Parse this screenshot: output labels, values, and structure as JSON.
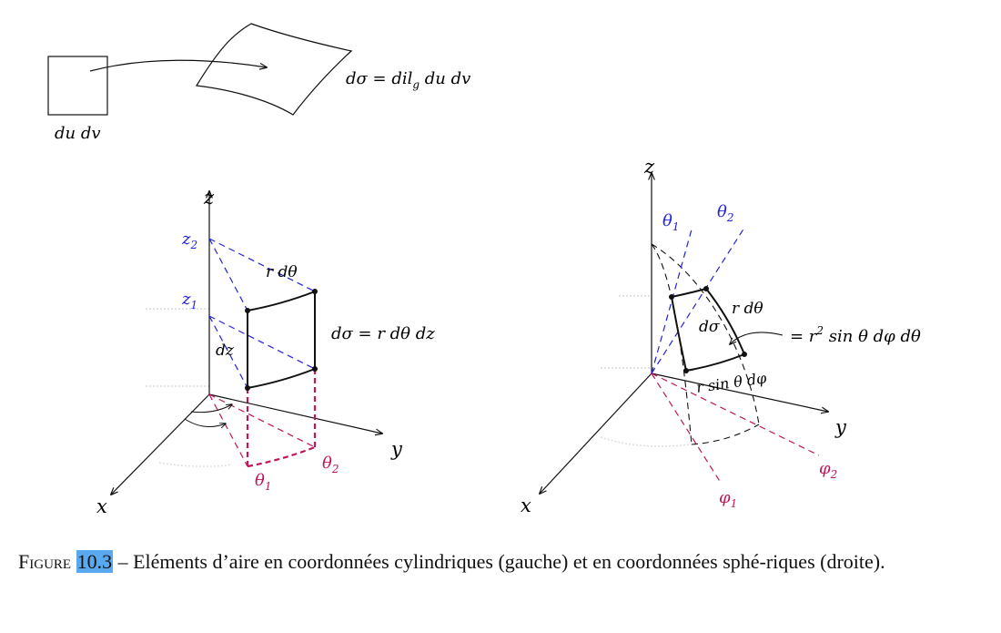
{
  "top": {
    "square_label": "du dv",
    "formula": "dσ = dil",
    "formula_sub": "g",
    "formula_rest": " du dv"
  },
  "cylinder": {
    "axis_z": "z",
    "axis_x": "x",
    "axis_y": "y",
    "z2": "z",
    "z2_sub": "2",
    "z1": "z",
    "z1_sub": "1",
    "theta1": "θ",
    "theta1_sub": "1",
    "theta2": "θ",
    "theta2_sub": "2",
    "r_dtheta": "r dθ",
    "dz": "dz",
    "formula": "dσ = r dθ dz"
  },
  "sphere": {
    "axis_z": "z",
    "axis_x": "x",
    "axis_y": "y",
    "theta1": "θ",
    "theta1_sub": "1",
    "theta2": "θ",
    "theta2_sub": "2",
    "phi1": "φ",
    "phi1_sub": "1",
    "phi2": "φ",
    "phi2_sub": "2",
    "r_dtheta": "r dθ",
    "dsigma": "dσ",
    "formula_a": "= r",
    "formula_sup": "2",
    "formula_b": " sin θ dφ dθ",
    "r_sin": "r sin θ dφ"
  },
  "caption": {
    "figure_word": "Figure",
    "figure_number": "10.3",
    "text": " – Eléments d’aire en coordonnées cylindriques (gauche) et en coordonnées sphé-riques (droite)."
  },
  "colors": {
    "ink": "#111111",
    "blue": "#2222dd",
    "magenta": "#c0155a",
    "faint": "#cccccc"
  }
}
